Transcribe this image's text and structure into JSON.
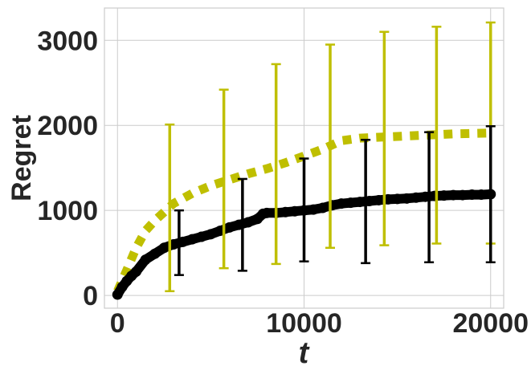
{
  "chart_data": {
    "type": "line",
    "title": "",
    "xlabel": "t",
    "ylabel": "Regret",
    "xlim": [
      -700,
      20700
    ],
    "ylim": [
      -150,
      3380
    ],
    "x_ticks": [
      0,
      10000,
      20000
    ],
    "y_ticks": [
      0,
      1000,
      2000,
      3000
    ],
    "grid": true,
    "legend": "none",
    "colors": {
      "black_series": "#000000",
      "yellow_series": "#bfbf00",
      "grid": "#cccccc",
      "axes": "#cccccc",
      "text": "#262626"
    },
    "series": [
      {
        "style": "solid",
        "color": "#000000",
        "x": [
          0,
          250,
          500,
          750,
          1000,
          1500,
          2000,
          2500,
          3000,
          3500,
          4000,
          4500,
          5000,
          5500,
          6000,
          6500,
          7000,
          7500,
          7800,
          8000,
          8500,
          9000,
          9500,
          10000,
          10500,
          11000,
          11500,
          12000,
          12500,
          13000,
          13500,
          14000,
          14500,
          15000,
          15500,
          16000,
          16500,
          17000,
          17500,
          18000,
          18500,
          19000,
          19500,
          20000
        ],
        "y": [
          10,
          100,
          170,
          230,
          280,
          420,
          490,
          560,
          600,
          630,
          660,
          690,
          720,
          760,
          800,
          830,
          860,
          900,
          960,
          970,
          970,
          980,
          990,
          1000,
          1010,
          1030,
          1060,
          1080,
          1090,
          1100,
          1110,
          1120,
          1130,
          1135,
          1140,
          1150,
          1160,
          1170,
          1175,
          1180,
          1180,
          1185,
          1185,
          1190
        ],
        "errorbars": [
          {
            "x": 3300,
            "y": 620,
            "low": 240,
            "high": 1000
          },
          {
            "x": 6700,
            "y": 820,
            "low": 290,
            "high": 1370
          },
          {
            "x": 10000,
            "y": 1000,
            "low": 400,
            "high": 1610
          },
          {
            "x": 13300,
            "y": 1100,
            "low": 380,
            "high": 1830
          },
          {
            "x": 16700,
            "y": 1160,
            "low": 390,
            "high": 1920
          },
          {
            "x": 20000,
            "y": 1190,
            "low": 390,
            "high": 1990
          }
        ]
      },
      {
        "style": "dotted",
        "color": "#bfbf00",
        "x": [
          0,
          500,
          1000,
          1500,
          2000,
          2500,
          3000,
          4000,
          5000,
          6000,
          7000,
          8000,
          9000,
          10000,
          11000,
          12000,
          13000,
          14000,
          15000,
          16000,
          17000,
          18000,
          19000,
          20000
        ],
        "y": [
          50,
          300,
          560,
          760,
          880,
          980,
          1080,
          1200,
          1290,
          1360,
          1430,
          1490,
          1560,
          1640,
          1720,
          1820,
          1850,
          1860,
          1870,
          1880,
          1890,
          1900,
          1905,
          1910
        ],
        "errorbars": [
          {
            "x": 2800,
            "y": 1030,
            "low": 50,
            "high": 2010
          },
          {
            "x": 5700,
            "y": 1360,
            "low": 320,
            "high": 2420
          },
          {
            "x": 8500,
            "y": 1540,
            "low": 370,
            "high": 2720
          },
          {
            "x": 11400,
            "y": 1750,
            "low": 560,
            "high": 2950
          },
          {
            "x": 14300,
            "y": 1840,
            "low": 590,
            "high": 3100
          },
          {
            "x": 17100,
            "y": 1880,
            "low": 610,
            "high": 3160
          },
          {
            "x": 20000,
            "y": 1910,
            "low": 610,
            "high": 3210
          }
        ]
      }
    ]
  }
}
